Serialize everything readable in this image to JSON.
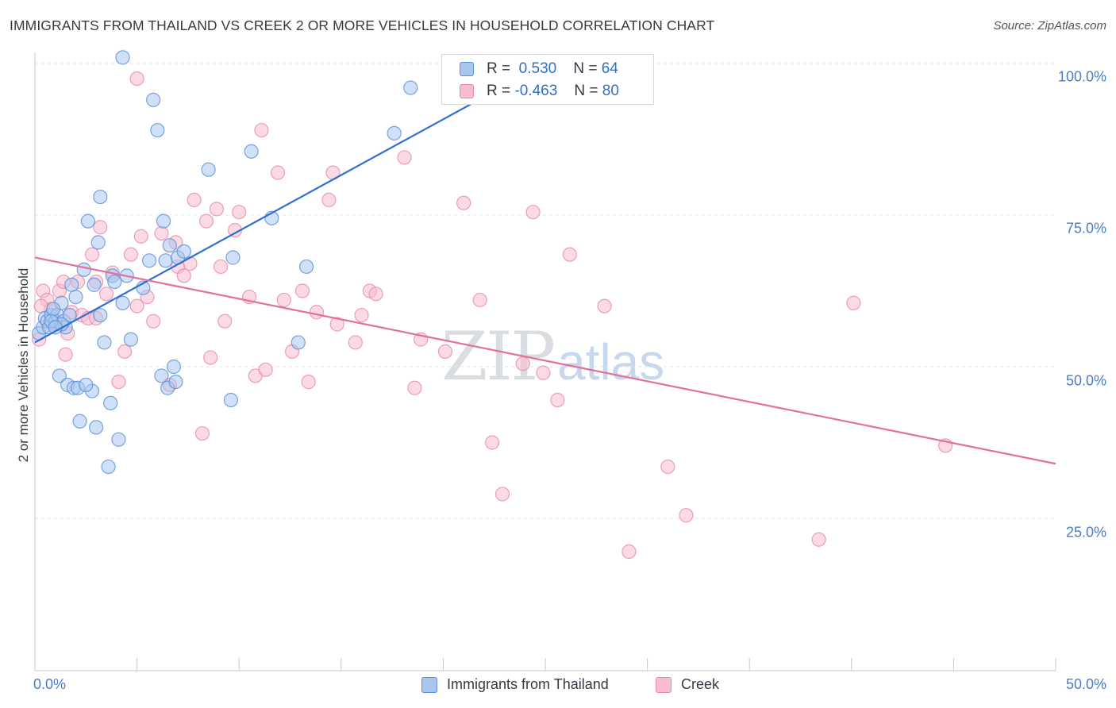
{
  "header": {
    "title": "IMMIGRANTS FROM THAILAND VS CREEK 2 OR MORE VEHICLES IN HOUSEHOLD CORRELATION CHART",
    "source": "Source: ZipAtlas.com"
  },
  "legend_top": {
    "rows": [
      {
        "r_label": "R =",
        "r_value": "0.530",
        "n_label": "N =",
        "n_value": "64"
      },
      {
        "r_label": "R =",
        "r_value": "-0.463",
        "n_label": "N =",
        "n_value": "80"
      }
    ]
  },
  "watermark": {
    "zip": "ZIP",
    "atlas": "atlas"
  },
  "colors": {
    "blue_fill": "#a9c6ee",
    "blue_stroke": "#5b8fd6",
    "blue_line": "#2f6fd0",
    "pink_fill": "#f7bccd",
    "pink_stroke": "#e98aa8",
    "pink_line": "#e2709a",
    "accent_text": "#2f6fc9"
  },
  "chart_data": {
    "type": "scatter",
    "title": "IMMIGRANTS FROM THAILAND VS CREEK 2 OR MORE VEHICLES IN HOUSEHOLD CORRELATION CHART",
    "xlabel": "",
    "ylabel": "2 or more Vehicles in Household",
    "xlim": [
      0,
      50
    ],
    "ylim": [
      0,
      102
    ],
    "x_tick_labels": [
      "0.0%",
      "50.0%"
    ],
    "y_ticks": [
      25,
      50,
      75,
      100
    ],
    "y_tick_labels": [
      "25.0%",
      "50.0%",
      "75.0%",
      "100.0%"
    ],
    "grid": true,
    "legend_position": "bottom-center",
    "series": [
      {
        "name": "Immigrants from Thailand",
        "color": "#5b8fd6",
        "R": 0.53,
        "N": 64,
        "trendline": {
          "x": [
            0,
            25
          ],
          "y": [
            54,
            100
          ]
        },
        "points": [
          [
            0.2,
            55.5
          ],
          [
            0.4,
            56.5
          ],
          [
            0.5,
            58
          ],
          [
            0.6,
            57.5
          ],
          [
            0.7,
            56.5
          ],
          [
            0.8,
            58.5
          ],
          [
            1.0,
            57.5
          ],
          [
            1.1,
            58.5
          ],
          [
            1.2,
            48.5
          ],
          [
            1.3,
            60.5
          ],
          [
            1.4,
            57.5
          ],
          [
            1.5,
            56.5
          ],
          [
            1.6,
            47
          ],
          [
            1.7,
            58.5
          ],
          [
            1.8,
            63.5
          ],
          [
            1.9,
            46.5
          ],
          [
            2.0,
            61.5
          ],
          [
            2.1,
            46.5
          ],
          [
            2.2,
            41
          ],
          [
            2.4,
            66
          ],
          [
            2.6,
            74
          ],
          [
            2.8,
            46
          ],
          [
            2.9,
            63.5
          ],
          [
            3.0,
            40
          ],
          [
            3.1,
            70.5
          ],
          [
            3.2,
            78
          ],
          [
            3.4,
            54
          ],
          [
            3.6,
            33.5
          ],
          [
            3.7,
            44
          ],
          [
            3.8,
            65
          ],
          [
            3.9,
            64
          ],
          [
            4.1,
            38
          ],
          [
            4.3,
            60.5
          ],
          [
            4.5,
            65
          ],
          [
            4.7,
            54.5
          ],
          [
            5.3,
            63
          ],
          [
            5.6,
            67.5
          ],
          [
            5.8,
            94
          ],
          [
            6.0,
            89
          ],
          [
            6.2,
            48.5
          ],
          [
            6.3,
            74
          ],
          [
            6.4,
            67.5
          ],
          [
            6.5,
            46.5
          ],
          [
            6.6,
            70
          ],
          [
            6.8,
            50
          ],
          [
            6.9,
            47.5
          ],
          [
            7.0,
            68
          ],
          [
            7.3,
            69
          ],
          [
            8.5,
            82.5
          ],
          [
            9.6,
            44.5
          ],
          [
            9.7,
            68
          ],
          [
            10.6,
            85.5
          ],
          [
            11.6,
            74.5
          ],
          [
            12.9,
            54
          ],
          [
            13.3,
            66.5
          ],
          [
            17.6,
            88.5
          ],
          [
            18.4,
            96
          ],
          [
            4.3,
            101
          ],
          [
            0.9,
            59.5
          ],
          [
            1.3,
            57
          ],
          [
            0.8,
            57.5
          ],
          [
            1.0,
            56.5
          ],
          [
            2.5,
            47
          ],
          [
            3.2,
            58.5
          ]
        ]
      },
      {
        "name": "Creek",
        "color": "#e98aa8",
        "R": -0.463,
        "N": 80,
        "trendline": {
          "x": [
            0,
            50
          ],
          "y": [
            68,
            34
          ]
        },
        "points": [
          [
            0.2,
            54.5
          ],
          [
            0.4,
            62.5
          ],
          [
            0.6,
            61
          ],
          [
            0.8,
            59.5
          ],
          [
            1.0,
            57
          ],
          [
            1.2,
            62.5
          ],
          [
            1.4,
            64
          ],
          [
            1.6,
            55.5
          ],
          [
            1.8,
            59
          ],
          [
            2.1,
            64
          ],
          [
            2.3,
            58.5
          ],
          [
            2.6,
            58
          ],
          [
            2.8,
            68.5
          ],
          [
            3.0,
            64
          ],
          [
            3.2,
            73
          ],
          [
            3.5,
            62
          ],
          [
            3.8,
            65.5
          ],
          [
            4.1,
            47.5
          ],
          [
            4.4,
            52.5
          ],
          [
            4.7,
            68.5
          ],
          [
            5.0,
            97.5
          ],
          [
            5.2,
            71.5
          ],
          [
            5.5,
            61.5
          ],
          [
            5.8,
            57.5
          ],
          [
            6.2,
            72
          ],
          [
            6.6,
            47
          ],
          [
            6.9,
            70.5
          ],
          [
            7.0,
            66.5
          ],
          [
            7.3,
            65
          ],
          [
            7.6,
            67
          ],
          [
            7.8,
            77.5
          ],
          [
            8.2,
            39
          ],
          [
            8.4,
            74
          ],
          [
            8.6,
            51.5
          ],
          [
            8.9,
            76
          ],
          [
            9.1,
            66.5
          ],
          [
            9.3,
            57.5
          ],
          [
            9.8,
            72.5
          ],
          [
            10.0,
            75.5
          ],
          [
            10.5,
            61.5
          ],
          [
            10.8,
            48.5
          ],
          [
            11.1,
            89
          ],
          [
            11.3,
            49.5
          ],
          [
            11.9,
            82
          ],
          [
            12.2,
            61
          ],
          [
            12.6,
            52.5
          ],
          [
            13.1,
            62.5
          ],
          [
            13.4,
            47.5
          ],
          [
            13.8,
            59
          ],
          [
            14.4,
            77.5
          ],
          [
            14.6,
            82
          ],
          [
            14.8,
            57
          ],
          [
            15.7,
            54
          ],
          [
            16.0,
            58.5
          ],
          [
            16.4,
            62.5
          ],
          [
            16.7,
            62
          ],
          [
            18.1,
            84.5
          ],
          [
            18.6,
            46.5
          ],
          [
            18.9,
            54.5
          ],
          [
            20.1,
            52.5
          ],
          [
            21.0,
            77
          ],
          [
            21.8,
            61
          ],
          [
            22.4,
            37.5
          ],
          [
            22.9,
            29
          ],
          [
            23.9,
            50.5
          ],
          [
            24.4,
            75.5
          ],
          [
            24.9,
            49
          ],
          [
            25.6,
            44.5
          ],
          [
            26.2,
            68.5
          ],
          [
            27.9,
            60
          ],
          [
            29.1,
            19.5
          ],
          [
            31.0,
            33.5
          ],
          [
            31.9,
            25.5
          ],
          [
            38.4,
            21.5
          ],
          [
            40.1,
            60.5
          ],
          [
            44.6,
            37
          ],
          [
            0.3,
            60
          ],
          [
            1.5,
            52
          ],
          [
            3.0,
            58
          ],
          [
            5.0,
            60
          ]
        ]
      }
    ]
  },
  "bottom_legend": {
    "items": [
      {
        "label": "Immigrants from Thailand"
      },
      {
        "label": "Creek"
      }
    ]
  }
}
